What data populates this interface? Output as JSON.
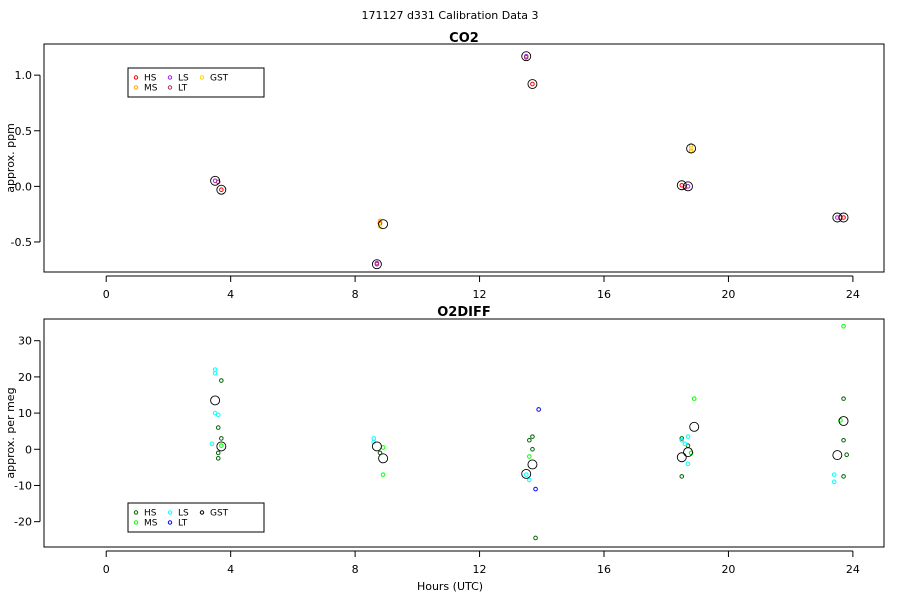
{
  "figure": {
    "suptitle": "171127  d331   Calibration Data 3",
    "xlabel": "Hours (UTC)",
    "colors": {
      "HS": "#ff0000",
      "MS": "#ffa500",
      "LS": "#a020f0",
      "LT": "#b03060",
      "GST": "#ffd700",
      "frame": "#000000"
    }
  },
  "chart_data": [
    {
      "type": "scatter",
      "title": "CO2",
      "ylabel": "approx. ppm",
      "xlim": [
        -2,
        25
      ],
      "ylim": [
        -0.77,
        1.28
      ],
      "xticks": [
        0,
        4,
        8,
        12,
        16,
        20,
        24
      ],
      "xtick_labels": [
        "0",
        "4",
        "8",
        "12",
        "16",
        "20",
        "24"
      ],
      "yticks": [
        -0.5,
        0.0,
        0.5,
        1.0
      ],
      "ytick_labels": [
        "-0.5",
        "0.0",
        "0.5",
        "1.0"
      ],
      "legend": {
        "position": "top-left",
        "entries": [
          {
            "name": "HS",
            "color": "#ff0000"
          },
          {
            "name": "MS",
            "color": "#ffa500"
          },
          {
            "name": "LS",
            "color": "#a020f0"
          },
          {
            "name": "LT",
            "color": "#b03060"
          },
          {
            "name": "GST",
            "color": "#ffd700"
          }
        ]
      },
      "series": [
        {
          "name": "HS",
          "color": "#ff0000",
          "points": [
            [
              3.7,
              -0.03
            ],
            [
              8.8,
              -0.33
            ],
            [
              13.7,
              0.92
            ],
            [
              18.5,
              0.01
            ],
            [
              23.7,
              -0.28
            ]
          ]
        },
        {
          "name": "MS",
          "color": "#ffa500",
          "points": [
            [
              8.8,
              -0.31
            ],
            [
              18.8,
              0.37
            ],
            [
              18.8,
              0.32
            ]
          ]
        },
        {
          "name": "LS",
          "color": "#a020f0",
          "points": [
            [
              3.5,
              0.05
            ],
            [
              8.7,
              -0.7
            ],
            [
              13.5,
              1.17
            ],
            [
              18.7,
              0.0
            ],
            [
              23.5,
              -0.28
            ]
          ]
        },
        {
          "name": "LT",
          "color": "#b03060",
          "points": [
            [
              3.6,
              0.04
            ],
            [
              8.7,
              -0.69
            ],
            [
              13.5,
              1.16
            ],
            [
              18.6,
              -0.01
            ],
            [
              23.6,
              -0.28
            ]
          ]
        },
        {
          "name": "GST",
          "color": "#ffd700",
          "points": [
            [
              8.8,
              -0.36
            ],
            [
              18.8,
              0.34
            ]
          ]
        }
      ],
      "means": [
        [
          3.5,
          0.05
        ],
        [
          3.7,
          -0.03
        ],
        [
          8.7,
          -0.7
        ],
        [
          8.9,
          -0.34
        ],
        [
          13.5,
          1.17
        ],
        [
          13.7,
          0.92
        ],
        [
          18.5,
          0.01
        ],
        [
          18.7,
          0.0
        ],
        [
          18.8,
          0.34
        ],
        [
          23.5,
          -0.28
        ],
        [
          23.7,
          -0.28
        ]
      ]
    },
    {
      "type": "scatter",
      "title": "O2DIFF",
      "ylabel": "approx. per meg",
      "xlim": [
        -2,
        25
      ],
      "ylim": [
        -27,
        36
      ],
      "xticks": [
        0,
        4,
        8,
        12,
        16,
        20,
        24
      ],
      "xtick_labels": [
        "0",
        "4",
        "8",
        "12",
        "16",
        "20",
        "24"
      ],
      "yticks": [
        -20,
        -10,
        0,
        10,
        20,
        30
      ],
      "ytick_labels": [
        "-20",
        "-10",
        "0",
        "10",
        "20",
        "30"
      ],
      "legend": {
        "position": "bottom-left",
        "entries": [
          {
            "name": "HS",
            "color": "#006400"
          },
          {
            "name": "MS",
            "color": "#00ff00"
          },
          {
            "name": "LS",
            "color": "#00ffff"
          },
          {
            "name": "LT",
            "color": "#0000ff"
          },
          {
            "name": "GST",
            "color": "#000000"
          }
        ]
      },
      "series": [
        {
          "name": "HS",
          "color": "#006400",
          "points": [
            [
              3.7,
              19
            ],
            [
              3.6,
              6
            ],
            [
              3.7,
              3
            ],
            [
              3.6,
              -1
            ],
            [
              3.6,
              -2.5
            ],
            [
              8.8,
              -1
            ],
            [
              13.7,
              3.5
            ],
            [
              13.6,
              2.5
            ],
            [
              13.7,
              0
            ],
            [
              13.8,
              -24.5
            ],
            [
              18.5,
              3
            ],
            [
              18.5,
              -7.5
            ],
            [
              18.7,
              1
            ],
            [
              23.7,
              14
            ],
            [
              23.7,
              2.5
            ],
            [
              23.8,
              -1.5
            ],
            [
              23.7,
              -7.5
            ]
          ]
        },
        {
          "name": "MS",
          "color": "#00ff00",
          "points": [
            [
              3.7,
              1
            ],
            [
              8.9,
              0.5
            ],
            [
              8.9,
              -7
            ],
            [
              13.6,
              -2
            ],
            [
              18.9,
              14
            ],
            [
              18.8,
              -1
            ],
            [
              23.7,
              34
            ],
            [
              23.6,
              8
            ]
          ]
        },
        {
          "name": "LS",
          "color": "#00ffff",
          "points": [
            [
              3.5,
              22
            ],
            [
              3.5,
              21
            ],
            [
              3.5,
              10
            ],
            [
              3.6,
              9.5
            ],
            [
              3.4,
              1.5
            ],
            [
              8.6,
              3
            ],
            [
              8.6,
              2
            ],
            [
              13.5,
              -7
            ],
            [
              13.6,
              -8.5
            ],
            [
              18.5,
              2.5
            ],
            [
              18.6,
              1.5
            ],
            [
              18.7,
              3.5
            ],
            [
              18.7,
              -4
            ],
            [
              23.4,
              -7
            ],
            [
              23.4,
              -9
            ]
          ]
        },
        {
          "name": "LT",
          "color": "#0000ff",
          "points": [
            [
              13.9,
              11
            ],
            [
              13.8,
              -11
            ]
          ]
        }
      ],
      "means": [
        [
          3.5,
          13.5
        ],
        [
          3.7,
          0.8
        ],
        [
          8.7,
          0.8
        ],
        [
          8.9,
          -2.5
        ],
        [
          13.5,
          -6.8
        ],
        [
          13.7,
          -4.2
        ],
        [
          18.5,
          -2.2
        ],
        [
          18.7,
          -0.8
        ],
        [
          18.9,
          6.2
        ],
        [
          23.5,
          -1.6
        ],
        [
          23.7,
          7.8
        ]
      ]
    }
  ]
}
